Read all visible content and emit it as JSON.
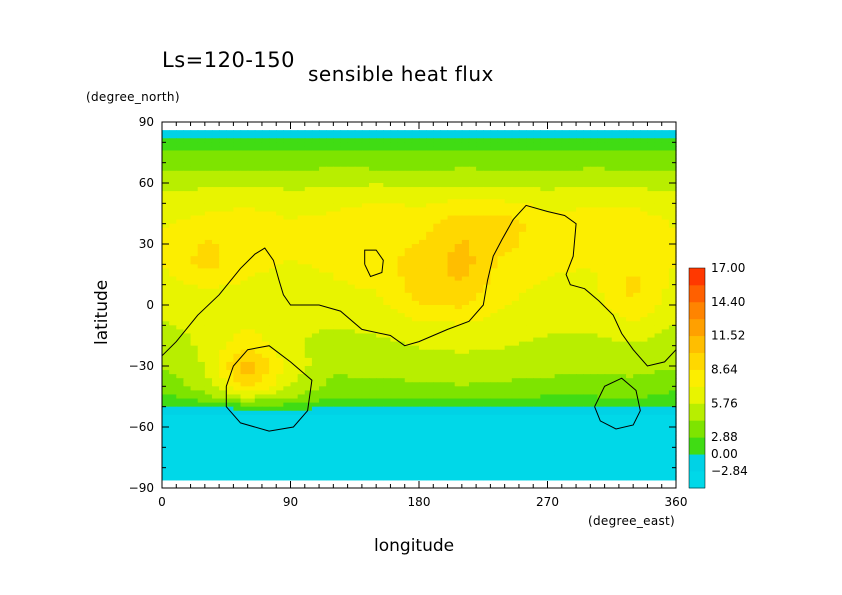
{
  "figure": {
    "period_label": "Ls=120-150",
    "title": "sensible heat flux",
    "x_unit": "(degree_east)",
    "y_unit": "(degree_north)",
    "x_axis_label": "longitude",
    "y_axis_label": "latitude"
  },
  "chart_data": {
    "type": "heatmap",
    "title": "sensible heat flux",
    "subtitle": "Ls=120-150",
    "xlabel": "longitude",
    "ylabel": "latitude",
    "xunit": "(degree_east)",
    "yunit": "(degree_north)",
    "xlim": [
      0,
      360
    ],
    "ylim": [
      -90,
      90
    ],
    "x_ticks": [
      0,
      90,
      180,
      270,
      360
    ],
    "y_ticks": [
      90,
      60,
      30,
      0,
      -30,
      -60,
      -90
    ],
    "x_tick_labels": [
      "0",
      "90",
      "180",
      "270",
      "360"
    ],
    "y_tick_labels": [
      "90",
      "60",
      "30",
      "0",
      "−30",
      "−60",
      "−90"
    ],
    "data_lat_range": [
      -86,
      86
    ],
    "colorbar": {
      "labels": [
        "17.00",
        "14.40",
        "11.52",
        "8.64",
        "5.76",
        "2.88",
        "0.00",
        "−2.84"
      ],
      "levels": [
        -5.72,
        -2.84,
        0.0,
        1.44,
        2.88,
        4.32,
        5.76,
        7.2,
        8.64,
        10.08,
        11.52,
        12.96,
        14.4,
        17.0
      ],
      "colors": [
        "#00d8e8",
        "#00d2e6",
        "#40dc14",
        "#7ee400",
        "#b8ee00",
        "#e8f400",
        "#fcee00",
        "#ffd800",
        "#ffbe00",
        "#ffa000",
        "#ff8400",
        "#ff6000",
        "#ff3800"
      ]
    },
    "field": {
      "description_lat": "latitude band values (degree_north) from 86 to -86",
      "lat": [
        86,
        80,
        70,
        60,
        50,
        40,
        30,
        20,
        10,
        0,
        -10,
        -20,
        -30,
        -40,
        -45,
        -50,
        -55,
        -60,
        -70,
        -80,
        -86
      ],
      "lon": [
        0,
        30,
        60,
        90,
        120,
        150,
        180,
        210,
        240,
        270,
        300,
        330,
        360
      ],
      "values": [
        [
          -1.0,
          -1.0,
          -1.0,
          -1.0,
          -1.0,
          -1.0,
          -1.0,
          -1.0,
          -1.0,
          -1.0,
          -1.0,
          -1.0,
          -1.0
        ],
        [
          0.8,
          0.9,
          0.8,
          0.9,
          0.8,
          0.9,
          0.8,
          0.9,
          0.8,
          0.9,
          0.8,
          0.9,
          0.8
        ],
        [
          2.2,
          2.4,
          2.3,
          2.2,
          2.5,
          2.3,
          2.2,
          2.4,
          2.3,
          2.2,
          2.4,
          2.3,
          2.2
        ],
        [
          3.6,
          3.9,
          4.1,
          3.8,
          4.0,
          4.2,
          3.9,
          4.1,
          4.0,
          3.8,
          4.1,
          4.0,
          3.6
        ],
        [
          5.0,
          5.4,
          5.6,
          5.3,
          5.5,
          5.8,
          5.6,
          6.2,
          6.0,
          5.4,
          5.6,
          5.5,
          5.0
        ],
        [
          5.6,
          6.2,
          6.4,
          5.9,
          6.1,
          6.8,
          6.5,
          8.2,
          8.0,
          6.2,
          6.3,
          6.6,
          5.6
        ],
        [
          6.0,
          7.4,
          6.8,
          6.4,
          6.2,
          7.0,
          7.2,
          8.8,
          7.6,
          6.4,
          6.2,
          6.8,
          6.0
        ],
        [
          5.8,
          7.8,
          6.2,
          5.6,
          6.0,
          6.8,
          7.6,
          9.4,
          6.6,
          6.0,
          5.8,
          7.0,
          5.8
        ],
        [
          5.2,
          6.0,
          5.6,
          5.0,
          5.6,
          6.0,
          8.0,
          8.6,
          6.2,
          5.6,
          5.4,
          7.6,
          5.2
        ],
        [
          4.8,
          5.0,
          5.2,
          4.6,
          5.0,
          5.2,
          7.2,
          7.4,
          5.8,
          5.2,
          5.0,
          7.2,
          4.8
        ],
        [
          4.2,
          4.6,
          5.6,
          4.4,
          4.4,
          4.6,
          5.4,
          5.6,
          5.0,
          4.6,
          4.6,
          5.6,
          4.2
        ],
        [
          3.6,
          4.6,
          7.0,
          4.6,
          3.8,
          4.0,
          4.4,
          4.6,
          4.4,
          4.0,
          3.8,
          4.2,
          3.6
        ],
        [
          3.0,
          4.4,
          9.6,
          5.2,
          3.2,
          3.4,
          3.6,
          3.8,
          3.6,
          3.4,
          3.2,
          3.4,
          3.0
        ],
        [
          1.8,
          3.6,
          7.8,
          4.2,
          2.4,
          2.6,
          2.6,
          2.8,
          2.6,
          2.4,
          2.2,
          2.4,
          1.8
        ],
        [
          1.0,
          2.4,
          4.6,
          3.0,
          1.6,
          1.6,
          1.8,
          1.8,
          1.6,
          1.4,
          1.4,
          1.6,
          1.0
        ],
        [
          0.3,
          0.6,
          0.8,
          1.0,
          0.5,
          0.5,
          0.6,
          0.6,
          0.5,
          0.5,
          0.4,
          0.5,
          0.3
        ],
        [
          -3.0,
          -3.0,
          -3.0,
          -3.0,
          -3.0,
          -3.0,
          -3.0,
          -3.0,
          -3.0,
          -3.0,
          -3.0,
          -3.0,
          -3.0
        ],
        [
          -3.0,
          -3.0,
          -3.0,
          -3.0,
          -3.0,
          -3.0,
          -3.0,
          -3.0,
          -3.0,
          -3.0,
          -3.0,
          -3.0,
          -3.0
        ],
        [
          -3.0,
          -3.0,
          -3.0,
          -3.0,
          -3.0,
          -3.0,
          -3.0,
          -3.0,
          -3.0,
          -3.0,
          -3.0,
          -3.0,
          -3.0
        ],
        [
          -3.0,
          -3.0,
          -3.0,
          -3.0,
          -3.0,
          -3.0,
          -3.0,
          -3.0,
          -3.0,
          -3.0,
          -3.0,
          -3.0,
          -3.0
        ],
        [
          -3.0,
          -3.0,
          -3.0,
          -3.0,
          -3.0,
          -3.0,
          -3.0,
          -3.0,
          -3.0,
          -3.0,
          -3.0,
          -3.0,
          -3.0
        ]
      ]
    },
    "topography_contours": [
      {
        "name": "northern-continent-outline",
        "points": [
          [
            0,
            -25
          ],
          [
            10,
            -18
          ],
          [
            25,
            -5
          ],
          [
            40,
            5
          ],
          [
            55,
            18
          ],
          [
            65,
            25
          ],
          [
            72,
            28
          ],
          [
            78,
            22
          ],
          [
            82,
            12
          ],
          [
            85,
            5
          ],
          [
            90,
            0
          ],
          [
            110,
            0
          ],
          [
            125,
            -3
          ],
          [
            140,
            -12
          ],
          [
            160,
            -15
          ],
          [
            170,
            -20
          ],
          [
            180,
            -18
          ],
          [
            190,
            -15
          ],
          [
            200,
            -12
          ],
          [
            215,
            -8
          ],
          [
            225,
            0
          ],
          [
            228,
            12
          ],
          [
            232,
            24
          ],
          [
            238,
            32
          ],
          [
            246,
            42
          ],
          [
            255,
            49
          ],
          [
            270,
            46
          ],
          [
            282,
            44
          ],
          [
            290,
            40
          ],
          [
            288,
            24
          ],
          [
            283,
            15
          ],
          [
            286,
            10
          ],
          [
            296,
            8
          ],
          [
            306,
            2
          ],
          [
            316,
            -5
          ],
          [
            322,
            -14
          ],
          [
            330,
            -22
          ],
          [
            340,
            -30
          ],
          [
            352,
            -28
          ],
          [
            360,
            -22
          ]
        ]
      },
      {
        "name": "small-northern-loop",
        "points": [
          [
            142,
            20
          ],
          [
            142,
            27
          ],
          [
            150,
            27
          ],
          [
            155,
            22
          ],
          [
            154,
            16
          ],
          [
            146,
            14
          ],
          [
            142,
            20
          ]
        ]
      },
      {
        "name": "hellas-basin-outline",
        "points": [
          [
            45,
            -40
          ],
          [
            50,
            -30
          ],
          [
            60,
            -22
          ],
          [
            75,
            -20
          ],
          [
            90,
            -28
          ],
          [
            105,
            -37
          ],
          [
            102,
            -52
          ],
          [
            92,
            -60
          ],
          [
            75,
            -62
          ],
          [
            55,
            -58
          ],
          [
            45,
            -50
          ],
          [
            45,
            -40
          ]
        ]
      },
      {
        "name": "argyre-basin-outline",
        "points": [
          [
            303,
            -50
          ],
          [
            310,
            -40
          ],
          [
            322,
            -36
          ],
          [
            332,
            -42
          ],
          [
            335,
            -52
          ],
          [
            330,
            -59
          ],
          [
            318,
            -61
          ],
          [
            307,
            -57
          ],
          [
            303,
            -50
          ]
        ]
      }
    ]
  }
}
